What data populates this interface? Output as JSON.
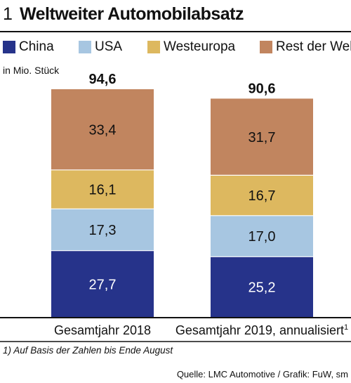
{
  "header": {
    "figure_number": "1",
    "title": "Weltweiter Automobilabsatz"
  },
  "unit_label": "in Mio. Stück",
  "footnote": "1) Auf Basis der Zahlen bis Ende August",
  "source": "Quelle: LMC Automotive / Grafik: FuW, sm",
  "chart_data": {
    "type": "bar",
    "stacked": true,
    "title": "Weltweiter Automobilabsatz",
    "ylabel": "in Mio. Stück",
    "categories": [
      "Gesamtjahr 2018",
      "Gesamtjahr 2019, annualisiert"
    ],
    "category_superscripts": [
      "",
      "1"
    ],
    "totals": [
      "94,6",
      "90,6"
    ],
    "ylim": [
      0,
      100
    ],
    "grid": false,
    "legend_placement": "top",
    "series": [
      {
        "name": "China",
        "color": "#26338a",
        "values": [
          27.7,
          25.2
        ],
        "labels": [
          "27,7",
          "25,2"
        ],
        "label_color": "#ffffff"
      },
      {
        "name": "USA",
        "color": "#a7c6e1",
        "values": [
          17.3,
          17.0
        ],
        "labels": [
          "17,3",
          "17,0"
        ],
        "label_color": "#111111"
      },
      {
        "name": "Westeuropa",
        "color": "#ddb85f",
        "values": [
          16.1,
          16.7
        ],
        "labels": [
          "16,1",
          "16,7"
        ],
        "label_color": "#111111"
      },
      {
        "name": "Rest der Welt",
        "color": "#c1855f",
        "values": [
          33.4,
          31.7
        ],
        "labels": [
          "33,4",
          "31,7"
        ],
        "label_color": "#111111"
      }
    ]
  }
}
